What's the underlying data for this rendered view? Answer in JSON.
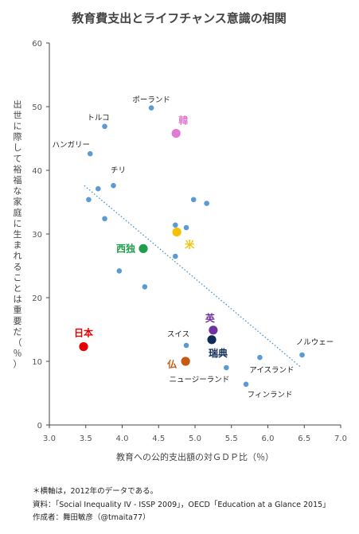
{
  "notes": {
    "line1": "＊横軸は，2012年のデータである。",
    "line2": "資料：「Social Inequality IV - ISSP 2009」，OECD「Education at a Glance 2015」",
    "line3": "作成者：舞田敏彦（@tmaita77）"
  },
  "chart_data": {
    "type": "scatter",
    "title": "教育費支出とライフチャンス意識の相関",
    "xlabel": "教育への公的支出額の対ＧＤＰ比（％）",
    "ylabel": "出世に際して裕福な家庭に生まれることは重要だ（％）",
    "xlim": [
      3.0,
      7.0
    ],
    "ylim": [
      0,
      60
    ],
    "x_ticks": [
      "3.0",
      "3.5",
      "4.0",
      "4.5",
      "5.0",
      "5.5",
      "6.0",
      "6.5",
      "7.0"
    ],
    "y_ticks": [
      "0",
      "10",
      "20",
      "30",
      "40",
      "50",
      "60"
    ],
    "grid": false,
    "trendline": {
      "style": "dotted",
      "color": "#4a90c8",
      "from": [
        3.48,
        37.6
      ],
      "to": [
        6.44,
        9.2
      ]
    },
    "points": [
      {
        "x": 4.4,
        "y": 49.8,
        "label": "ポーランド",
        "color": "#5b9bd5"
      },
      {
        "x": 3.76,
        "y": 46.9,
        "label": "トルコ",
        "color": "#5b9bd5"
      },
      {
        "x": 3.56,
        "y": 42.6,
        "label": "ハンガリー",
        "color": "#5b9bd5"
      },
      {
        "x": 3.88,
        "y": 37.6,
        "label": "チリ",
        "color": "#5b9bd5"
      },
      {
        "x": 3.67,
        "y": 37.1,
        "label": "",
        "color": "#5b9bd5"
      },
      {
        "x": 3.54,
        "y": 35.4,
        "label": "",
        "color": "#5b9bd5"
      },
      {
        "x": 3.76,
        "y": 32.4,
        "label": "",
        "color": "#5b9bd5"
      },
      {
        "x": 3.96,
        "y": 24.2,
        "label": "",
        "color": "#5b9bd5"
      },
      {
        "x": 4.31,
        "y": 21.7,
        "label": "",
        "color": "#5b9bd5"
      },
      {
        "x": 4.73,
        "y": 31.4,
        "label": "",
        "color": "#5b9bd5"
      },
      {
        "x": 4.88,
        "y": 31.0,
        "label": "",
        "color": "#5b9bd5"
      },
      {
        "x": 4.98,
        "y": 35.4,
        "label": "",
        "color": "#5b9bd5"
      },
      {
        "x": 5.16,
        "y": 34.8,
        "label": "",
        "color": "#5b9bd5"
      },
      {
        "x": 4.73,
        "y": 26.5,
        "label": "",
        "color": "#5b9bd5"
      },
      {
        "x": 4.88,
        "y": 12.5,
        "label": "スイス",
        "color": "#5b9bd5"
      },
      {
        "x": 5.43,
        "y": 9.0,
        "label": "ニュージーランド",
        "color": "#5b9bd5"
      },
      {
        "x": 5.89,
        "y": 10.6,
        "label": "アイスランド",
        "color": "#5b9bd5"
      },
      {
        "x": 5.7,
        "y": 6.4,
        "label": "フィンランド",
        "color": "#5b9bd5"
      },
      {
        "x": 6.47,
        "y": 11.0,
        "label": "ノルウェー",
        "color": "#5b9bd5"
      }
    ],
    "highlights": [
      {
        "x": 4.74,
        "y": 45.8,
        "label": "韓",
        "color": "#e07bd1"
      },
      {
        "x": 4.75,
        "y": 30.3,
        "label": "米",
        "color": "#f2c200"
      },
      {
        "x": 4.29,
        "y": 27.7,
        "label": "西独",
        "color": "#1e9e4a"
      },
      {
        "x": 5.25,
        "y": 14.9,
        "label": "英",
        "color": "#7030a0"
      },
      {
        "x": 5.23,
        "y": 13.4,
        "label": "瑞典",
        "color": "#0f2a57"
      },
      {
        "x": 4.87,
        "y": 10.0,
        "label": "仏",
        "color": "#c55a11"
      },
      {
        "x": 3.47,
        "y": 12.3,
        "label": "日本",
        "color": "#e60000"
      }
    ]
  }
}
